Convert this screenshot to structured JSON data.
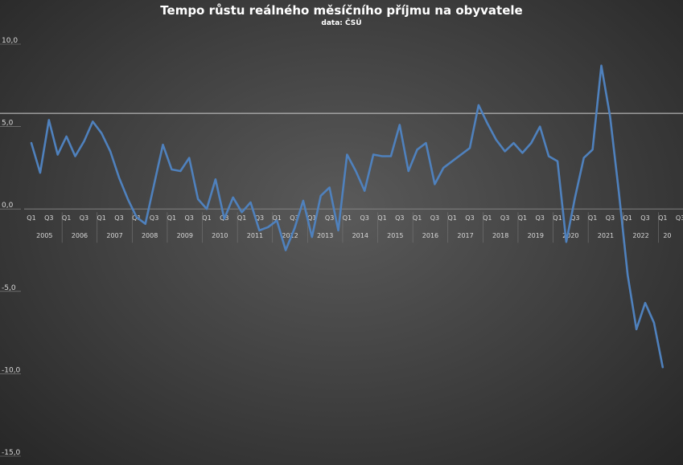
{
  "chart_data": {
    "type": "line",
    "title": "Tempo růstu reálného měsíčního příjmu na obyvatele",
    "subtitle": "data: ČSÚ",
    "xlabel": "",
    "ylabel": "",
    "ylim": [
      -15,
      10
    ],
    "y_ticks": [
      "10,0",
      "5,0",
      "0,0",
      "-5,0",
      "-10,0",
      "-15,0"
    ],
    "quarter_labels": [
      "Q1",
      "Q3"
    ],
    "years": [
      "2005",
      "2006",
      "2007",
      "2008",
      "2009",
      "2010",
      "2011",
      "2012",
      "2013",
      "2014",
      "2015",
      "2016",
      "2017",
      "2018",
      "2019",
      "2020",
      "2021",
      "2022",
      "20"
    ],
    "grid": false,
    "legend": "none",
    "series": [
      {
        "values": [
          4.0,
          2.2,
          5.4,
          3.3,
          4.4,
          3.2,
          4.1,
          5.3,
          4.6,
          3.5,
          1.9,
          0.6,
          -0.5,
          -0.9,
          1.5,
          3.9,
          2.4,
          2.3,
          3.1,
          0.6,
          0.0,
          1.8,
          -0.6,
          0.7,
          -0.2,
          0.4,
          -1.3,
          -1.1,
          -0.7,
          -2.5,
          -1.2,
          0.5,
          -1.7,
          0.8,
          1.3,
          -1.3,
          3.3,
          2.3,
          1.1,
          3.3,
          3.2,
          3.2,
          5.1,
          2.3,
          3.6,
          4.0,
          1.5,
          2.5,
          2.9,
          3.3,
          3.7,
          6.3,
          5.2,
          4.2,
          3.5,
          4.0,
          3.4,
          4.0,
          5.0,
          3.2,
          2.9,
          -2.0,
          0.7,
          3.1,
          3.6,
          8.7,
          5.6,
          1.0,
          -4.0,
          -7.3,
          -5.7,
          -6.9,
          -9.6
        ],
        "color": "#4f81bd"
      }
    ],
    "reference_line": {
      "value": 5.8,
      "color": "#cfcfcf"
    }
  }
}
